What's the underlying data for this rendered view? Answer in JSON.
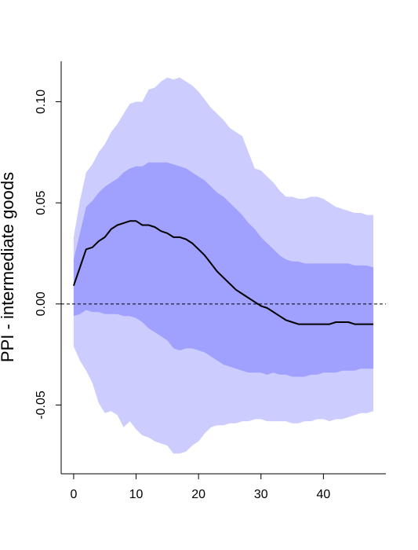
{
  "chart_data": {
    "type": "area",
    "title": "",
    "xlabel": "",
    "ylabel": "PPI - intermediate goods",
    "xlim": [
      -2,
      50
    ],
    "ylim": [
      -0.084,
      0.12
    ],
    "xticks": [
      0,
      10,
      20,
      30,
      40
    ],
    "xtick_labels": [
      "0",
      "10",
      "20",
      "30",
      "40"
    ],
    "yticks": [
      -0.05,
      0.0,
      0.05,
      0.1
    ],
    "ytick_labels": [
      "-0.05",
      "0.00",
      "0.05",
      "0.10"
    ],
    "grid": false,
    "zero_line": {
      "y": 0,
      "style": "dashed"
    },
    "x": [
      0,
      1,
      2,
      3,
      4,
      5,
      6,
      7,
      8,
      9,
      10,
      11,
      12,
      13,
      14,
      15,
      16,
      17,
      18,
      19,
      20,
      21,
      22,
      23,
      24,
      25,
      26,
      27,
      28,
      29,
      30,
      31,
      32,
      33,
      34,
      35,
      36,
      37,
      38,
      39,
      40,
      41,
      42,
      43,
      44,
      45,
      46,
      47,
      48
    ],
    "series": [
      {
        "role": "outer-band",
        "color": "#ccccff",
        "upper": [
          0.033,
          0.051,
          0.065,
          0.069,
          0.075,
          0.079,
          0.085,
          0.089,
          0.094,
          0.099,
          0.1,
          0.1,
          0.106,
          0.107,
          0.11,
          0.112,
          0.111,
          0.112,
          0.11,
          0.108,
          0.105,
          0.101,
          0.097,
          0.094,
          0.091,
          0.087,
          0.085,
          0.083,
          0.075,
          0.067,
          0.066,
          0.063,
          0.06,
          0.056,
          0.053,
          0.053,
          0.052,
          0.052,
          0.053,
          0.053,
          0.052,
          0.05,
          0.048,
          0.047,
          0.046,
          0.045,
          0.045,
          0.044,
          0.044
        ],
        "lower": [
          -0.021,
          -0.028,
          -0.033,
          -0.039,
          -0.049,
          -0.054,
          -0.053,
          -0.055,
          -0.061,
          -0.058,
          -0.062,
          -0.065,
          -0.066,
          -0.068,
          -0.069,
          -0.07,
          -0.074,
          -0.074,
          -0.073,
          -0.07,
          -0.068,
          -0.064,
          -0.061,
          -0.06,
          -0.06,
          -0.059,
          -0.059,
          -0.058,
          -0.058,
          -0.057,
          -0.057,
          -0.058,
          -0.058,
          -0.058,
          -0.058,
          -0.059,
          -0.059,
          -0.058,
          -0.058,
          -0.057,
          -0.057,
          -0.058,
          -0.057,
          -0.057,
          -0.056,
          -0.055,
          -0.054,
          -0.054,
          -0.053
        ]
      },
      {
        "role": "inner-band",
        "color": "#a0a0ff",
        "upper": [
          0.022,
          0.035,
          0.048,
          0.051,
          0.055,
          0.058,
          0.06,
          0.062,
          0.065,
          0.067,
          0.068,
          0.068,
          0.07,
          0.07,
          0.07,
          0.07,
          0.069,
          0.068,
          0.067,
          0.065,
          0.063,
          0.061,
          0.058,
          0.055,
          0.053,
          0.05,
          0.047,
          0.044,
          0.04,
          0.037,
          0.033,
          0.03,
          0.027,
          0.024,
          0.022,
          0.021,
          0.021,
          0.02,
          0.02,
          0.02,
          0.02,
          0.02,
          0.02,
          0.02,
          0.02,
          0.019,
          0.019,
          0.019,
          0.018
        ],
        "lower": [
          -0.006,
          -0.005,
          -0.003,
          -0.004,
          -0.004,
          -0.005,
          -0.005,
          -0.005,
          -0.006,
          -0.006,
          -0.007,
          -0.009,
          -0.012,
          -0.014,
          -0.016,
          -0.018,
          -0.022,
          -0.023,
          -0.022,
          -0.022,
          -0.023,
          -0.024,
          -0.026,
          -0.028,
          -0.03,
          -0.031,
          -0.032,
          -0.033,
          -0.034,
          -0.034,
          -0.034,
          -0.035,
          -0.034,
          -0.035,
          -0.035,
          -0.036,
          -0.036,
          -0.036,
          -0.035,
          -0.035,
          -0.034,
          -0.034,
          -0.034,
          -0.033,
          -0.033,
          -0.033,
          -0.032,
          -0.032,
          -0.032
        ]
      },
      {
        "role": "median",
        "color": "#000000",
        "values": [
          0.009,
          0.018,
          0.027,
          0.028,
          0.031,
          0.033,
          0.037,
          0.039,
          0.04,
          0.041,
          0.041,
          0.039,
          0.039,
          0.038,
          0.036,
          0.035,
          0.033,
          0.033,
          0.032,
          0.03,
          0.027,
          0.024,
          0.02,
          0.016,
          0.013,
          0.01,
          0.007,
          0.005,
          0.003,
          0.001,
          -0.001,
          -0.002,
          -0.004,
          -0.006,
          -0.008,
          -0.009,
          -0.01,
          -0.01,
          -0.01,
          -0.01,
          -0.01,
          -0.01,
          -0.009,
          -0.009,
          -0.009,
          -0.01,
          -0.01,
          -0.01,
          -0.01
        ]
      }
    ]
  }
}
